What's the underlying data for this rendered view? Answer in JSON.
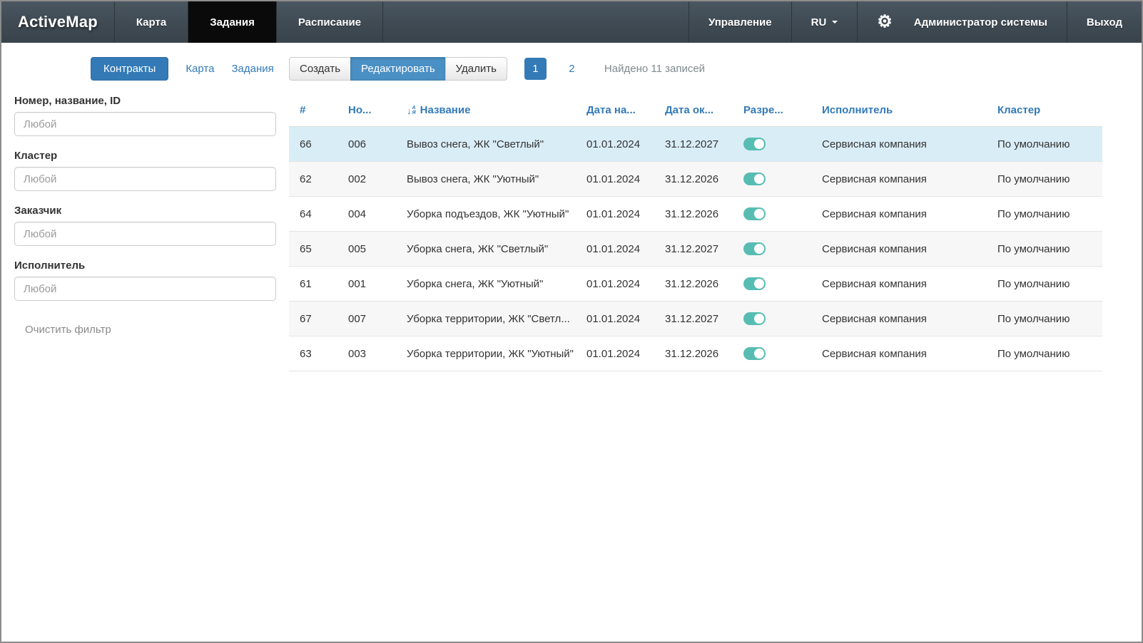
{
  "topnav": {
    "brand": "ActiveMap",
    "tabs": [
      {
        "label": "Карта",
        "active": false
      },
      {
        "label": "Задания",
        "active": true
      },
      {
        "label": "Расписание",
        "active": false
      }
    ],
    "right": {
      "management": "Управление",
      "lang": "RU",
      "user": "Администратор системы",
      "logout": "Выход"
    }
  },
  "icons": {
    "gear": "⚙",
    "sort_arrow": "↓",
    "sort_top_letter": "А",
    "sort_bottom_letter": "Я"
  },
  "toolbar": {
    "view_tabs": [
      {
        "label": "Контракты",
        "active": true
      },
      {
        "label": "Карта",
        "active": false
      },
      {
        "label": "Задания",
        "active": false
      }
    ],
    "actions": [
      {
        "label": "Создать",
        "active": false
      },
      {
        "label": "Редактировать",
        "active": true
      },
      {
        "label": "Удалить",
        "active": false
      }
    ],
    "pagination": {
      "pages": [
        {
          "label": "1",
          "active": true
        },
        {
          "label": "2",
          "active": false
        }
      ],
      "found_text": "Найдено 11 записей"
    }
  },
  "filters": {
    "fields": [
      {
        "label": "Номер, название, ID",
        "placeholder": "Любой",
        "value": ""
      },
      {
        "label": "Кластер",
        "placeholder": "Любой",
        "value": ""
      },
      {
        "label": "Заказчик",
        "placeholder": "Любой",
        "value": ""
      },
      {
        "label": "Исполнитель",
        "placeholder": "Любой",
        "value": ""
      }
    ],
    "clear_label": "Очистить фильтр"
  },
  "table": {
    "columns": [
      {
        "label": "#",
        "sorted": false
      },
      {
        "label": "Но...",
        "sorted": false
      },
      {
        "label": "Название",
        "sorted": true
      },
      {
        "label": "Дата на...",
        "sorted": false
      },
      {
        "label": "Дата ок...",
        "sorted": false
      },
      {
        "label": "Разре...",
        "sorted": false
      },
      {
        "label": "Исполнитель",
        "sorted": false
      },
      {
        "label": "Кластер",
        "sorted": false
      }
    ],
    "rows": [
      {
        "id": "66",
        "number": "006",
        "name": "Вывоз снега, ЖК \"Светлый\"",
        "date_start": "01.01.2024",
        "date_end": "31.12.2027",
        "enabled": true,
        "executor": "Сервисная компания",
        "cluster": "По умолчанию",
        "selected": true
      },
      {
        "id": "62",
        "number": "002",
        "name": "Вывоз снега, ЖК \"Уютный\"",
        "date_start": "01.01.2024",
        "date_end": "31.12.2026",
        "enabled": true,
        "executor": "Сервисная компания",
        "cluster": "По умолчанию",
        "selected": false
      },
      {
        "id": "64",
        "number": "004",
        "name": "Уборка подъездов, ЖК \"Уютный\"",
        "date_start": "01.01.2024",
        "date_end": "31.12.2026",
        "enabled": true,
        "executor": "Сервисная компания",
        "cluster": "По умолчанию",
        "selected": false
      },
      {
        "id": "65",
        "number": "005",
        "name": "Уборка снега, ЖК \"Светлый\"",
        "date_start": "01.01.2024",
        "date_end": "31.12.2027",
        "enabled": true,
        "executor": "Сервисная компания",
        "cluster": "По умолчанию",
        "selected": false
      },
      {
        "id": "61",
        "number": "001",
        "name": "Уборка снега, ЖК \"Уютный\"",
        "date_start": "01.01.2024",
        "date_end": "31.12.2026",
        "enabled": true,
        "executor": "Сервисная компания",
        "cluster": "По умолчанию",
        "selected": false
      },
      {
        "id": "67",
        "number": "007",
        "name": "Уборка территории, ЖК \"Светл...",
        "date_start": "01.01.2024",
        "date_end": "31.12.2027",
        "enabled": true,
        "executor": "Сервисная компания",
        "cluster": "По умолчанию",
        "selected": false
      },
      {
        "id": "63",
        "number": "003",
        "name": "Уборка территории, ЖК \"Уютный\"",
        "date_start": "01.01.2024",
        "date_end": "31.12.2026",
        "enabled": true,
        "executor": "Сервисная компания",
        "cluster": "По умолчанию",
        "selected": false
      }
    ]
  },
  "colors": {
    "accent_blue": "#337ab7",
    "edit_button_active": "#4a90c4",
    "nav_background": "#3f4a53",
    "active_tab_background": "#0a0a0a",
    "selected_row": "#d9edf7",
    "striped_row": "#f7f7f7",
    "toggle_on": "#57bdb2"
  }
}
